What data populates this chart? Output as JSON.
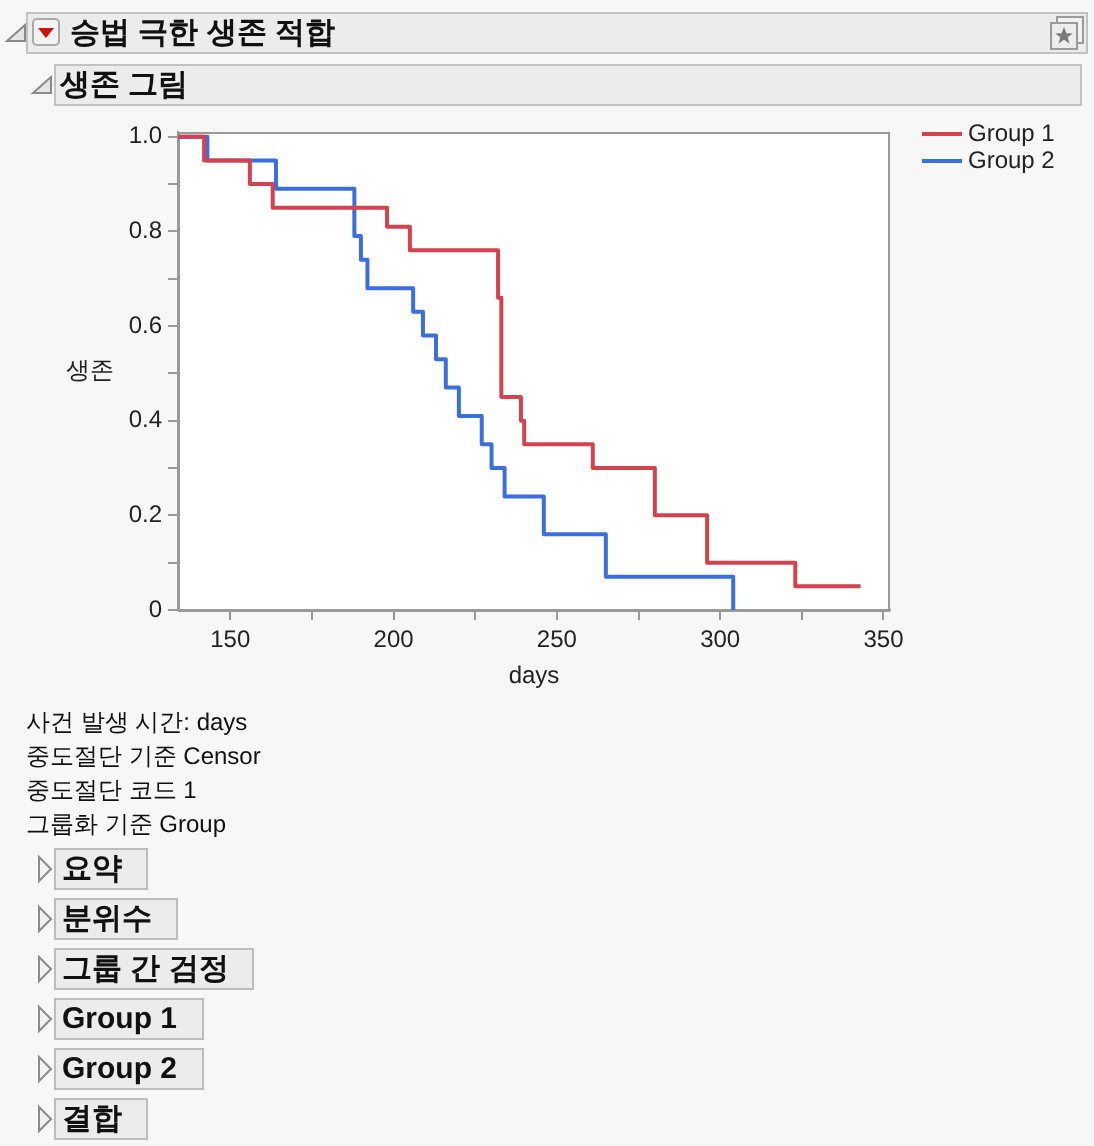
{
  "chart_data": {
    "type": "step",
    "title": "승법 극한 생존 적합",
    "subtitle": "생존 그림",
    "xlabel": "days",
    "ylabel": "생존",
    "legend": "top right",
    "xlim": [
      134,
      352
    ],
    "xticks": [
      150,
      {
        "value": 175,
        "label": null
      },
      200,
      {
        "value": 225,
        "label": null
      },
      250,
      {
        "value": 275,
        "label": null
      },
      300,
      {
        "value": 325,
        "label": null
      },
      350
    ],
    "ylim": [
      0,
      1.01
    ],
    "yticks": [
      0,
      {
        "value": 0.1,
        "label": null
      },
      0.2,
      {
        "value": 0.3,
        "label": null
      },
      0.4,
      {
        "value": 0.5,
        "label": null
      },
      0.6,
      {
        "value": 0.7,
        "label": null
      },
      0.8,
      {
        "value": 0.9,
        "label": null
      },
      {
        "value": 1,
        "label": "1.0"
      }
    ],
    "series": [
      {
        "name": "Group 1",
        "color": "#d3424f",
        "x": [
          134,
          142,
          156,
          163,
          198,
          205,
          232,
          233,
          239,
          240,
          261,
          280,
          296,
          323,
          343
        ],
        "values": [
          1,
          0.95,
          0.9,
          0.85,
          0.81,
          0.76,
          0.66,
          0.45,
          0.4,
          0.35,
          0.3,
          0.2,
          0.1,
          0.05,
          0.05
        ]
      },
      {
        "name": "Group 2",
        "color": "#3a6fdd",
        "x": [
          134,
          143,
          164,
          188,
          190,
          192,
          206,
          209,
          213,
          216,
          220,
          227,
          230,
          234,
          246,
          265,
          304
        ],
        "values": [
          1,
          0.95,
          0.89,
          0.79,
          0.74,
          0.68,
          0.63,
          0.58,
          0.53,
          0.47,
          0.41,
          0.35,
          0.3,
          0.24,
          0.16,
          0.07,
          0
        ]
      }
    ],
    "annotations": [
      "사건 발생 시간: days",
      "중도절단 기준 Censor",
      "중도절단 코드 1",
      "그룹화 기준 Group",
      "요약",
      "분위수",
      "그룹 간 검정",
      "Group 1",
      "Group 2",
      "결합"
    ]
  }
}
